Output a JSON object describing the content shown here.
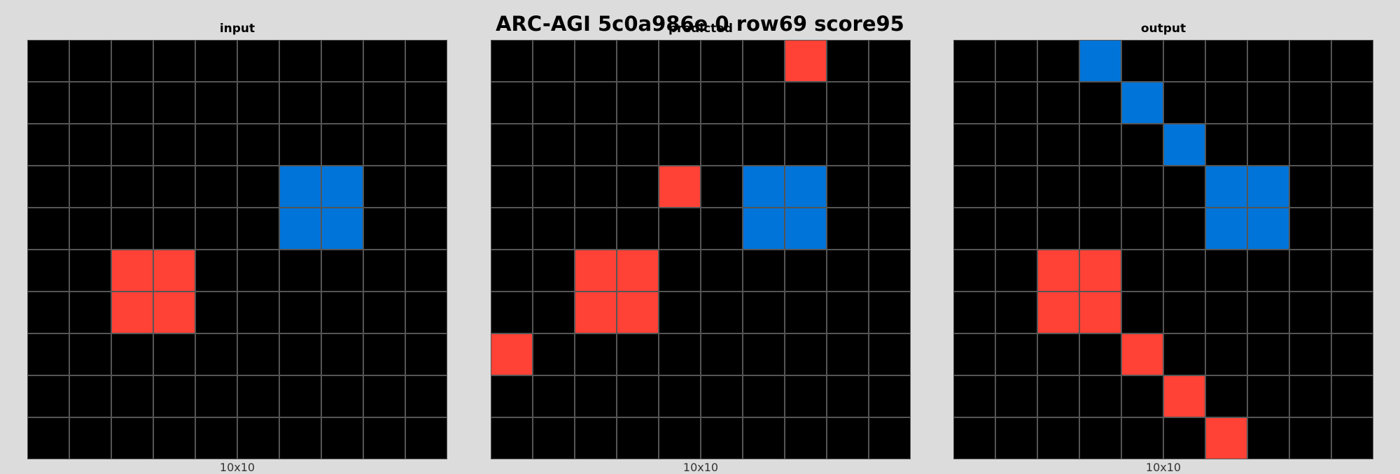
{
  "title": "ARC-AGI 5c0a986e 0 row69 score95",
  "palette": {
    "0": "#000000",
    "1": "#0074d9",
    "2": "#ff4136"
  },
  "panels": [
    {
      "name": "input",
      "title": "input",
      "caption": "10x10",
      "grid": [
        [
          0,
          0,
          0,
          0,
          0,
          0,
          0,
          0,
          0,
          0
        ],
        [
          0,
          0,
          0,
          0,
          0,
          0,
          0,
          0,
          0,
          0
        ],
        [
          0,
          0,
          0,
          0,
          0,
          0,
          0,
          0,
          0,
          0
        ],
        [
          0,
          0,
          0,
          0,
          0,
          0,
          1,
          1,
          0,
          0
        ],
        [
          0,
          0,
          0,
          0,
          0,
          0,
          1,
          1,
          0,
          0
        ],
        [
          0,
          0,
          2,
          2,
          0,
          0,
          0,
          0,
          0,
          0
        ],
        [
          0,
          0,
          2,
          2,
          0,
          0,
          0,
          0,
          0,
          0
        ],
        [
          0,
          0,
          0,
          0,
          0,
          0,
          0,
          0,
          0,
          0
        ],
        [
          0,
          0,
          0,
          0,
          0,
          0,
          0,
          0,
          0,
          0
        ],
        [
          0,
          0,
          0,
          0,
          0,
          0,
          0,
          0,
          0,
          0
        ]
      ]
    },
    {
      "name": "predicted",
      "title": "predicted",
      "caption": "10x10",
      "grid": [
        [
          0,
          0,
          0,
          0,
          0,
          0,
          0,
          2,
          0,
          0
        ],
        [
          0,
          0,
          0,
          0,
          0,
          0,
          0,
          0,
          0,
          0
        ],
        [
          0,
          0,
          0,
          0,
          0,
          0,
          0,
          0,
          0,
          0
        ],
        [
          0,
          0,
          0,
          0,
          2,
          0,
          1,
          1,
          0,
          0
        ],
        [
          0,
          0,
          0,
          0,
          0,
          0,
          1,
          1,
          0,
          0
        ],
        [
          0,
          0,
          2,
          2,
          0,
          0,
          0,
          0,
          0,
          0
        ],
        [
          0,
          0,
          2,
          2,
          0,
          0,
          0,
          0,
          0,
          0
        ],
        [
          2,
          0,
          0,
          0,
          0,
          0,
          0,
          0,
          0,
          0
        ],
        [
          0,
          0,
          0,
          0,
          0,
          0,
          0,
          0,
          0,
          0
        ],
        [
          0,
          0,
          0,
          0,
          0,
          0,
          0,
          0,
          0,
          0
        ]
      ]
    },
    {
      "name": "output",
      "title": "output",
      "caption": "10x10",
      "grid": [
        [
          0,
          0,
          0,
          1,
          0,
          0,
          0,
          0,
          0,
          0
        ],
        [
          0,
          0,
          0,
          0,
          1,
          0,
          0,
          0,
          0,
          0
        ],
        [
          0,
          0,
          0,
          0,
          0,
          1,
          0,
          0,
          0,
          0
        ],
        [
          0,
          0,
          0,
          0,
          0,
          0,
          1,
          1,
          0,
          0
        ],
        [
          0,
          0,
          0,
          0,
          0,
          0,
          1,
          1,
          0,
          0
        ],
        [
          0,
          0,
          2,
          2,
          0,
          0,
          0,
          0,
          0,
          0
        ],
        [
          0,
          0,
          2,
          2,
          0,
          0,
          0,
          0,
          0,
          0
        ],
        [
          0,
          0,
          0,
          0,
          2,
          0,
          0,
          0,
          0,
          0
        ],
        [
          0,
          0,
          0,
          0,
          0,
          2,
          0,
          0,
          0,
          0
        ],
        [
          0,
          0,
          0,
          0,
          0,
          0,
          2,
          0,
          0,
          0
        ]
      ]
    }
  ]
}
